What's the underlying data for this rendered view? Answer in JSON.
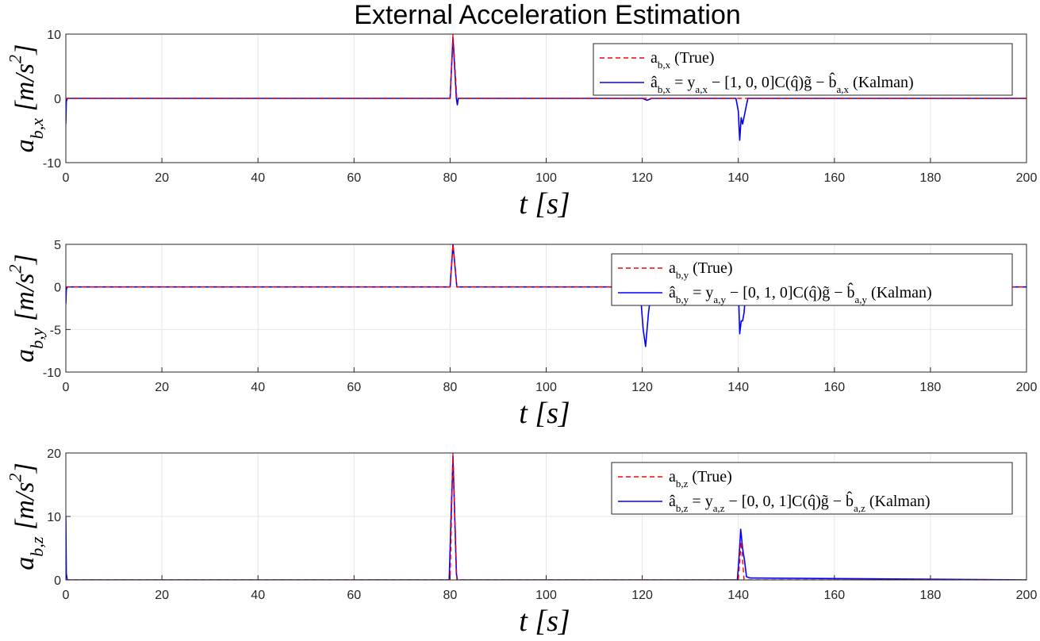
{
  "title": "External Acceleration Estimation",
  "colors": {
    "true_series": "#ff0000",
    "kalman_series": "#0000ff",
    "grid": "#e6e6e6",
    "axis": "#262626"
  },
  "chart_data": [
    {
      "type": "line",
      "ylabel": "a_{b,x} [m/s^2]",
      "xlabel": "t [s]",
      "xlim": [
        0,
        200
      ],
      "ylim": [
        -10,
        10
      ],
      "xticks": [
        "0",
        "20",
        "40",
        "60",
        "80",
        "100",
        "120",
        "140",
        "160",
        "180",
        "200"
      ],
      "yticks": [
        "10",
        "0",
        "-10"
      ],
      "grid": true,
      "legend_position": "top-right",
      "series": [
        {
          "name": "a_{b,x} (True)",
          "style": "dashed",
          "x": [
            0,
            80,
            80.6,
            81.4,
            82,
            200
          ],
          "y": [
            0,
            0,
            10,
            0,
            0,
            0
          ]
        },
        {
          "name": "â_{b,x} = y_{a,x} − [1, 0, 0]C(q̂)g̃ − b̂_{a,x} (Kalman)",
          "style": "solid",
          "x": [
            0,
            0.1,
            0.3,
            80,
            80.6,
            81.3,
            81.5,
            81.7,
            120,
            121,
            122,
            139.5,
            140,
            140.3,
            140.6,
            140.9,
            141.3,
            141.7,
            142,
            200
          ],
          "y": [
            -4,
            -0.5,
            0,
            0,
            9.5,
            0,
            -1,
            0,
            0,
            -0.3,
            0,
            0,
            -2,
            -6.5,
            -3,
            -4,
            -2.5,
            -1,
            0,
            0
          ]
        }
      ]
    },
    {
      "type": "line",
      "ylabel": "a_{b,y} [m/s^2]",
      "xlabel": "t [s]",
      "xlim": [
        0,
        200
      ],
      "ylim": [
        -10,
        5
      ],
      "xticks": [
        "0",
        "20",
        "40",
        "60",
        "80",
        "100",
        "120",
        "140",
        "160",
        "180",
        "200"
      ],
      "yticks": [
        "5",
        "0",
        "-5",
        "-10"
      ],
      "grid": true,
      "legend_position": "top-right",
      "series": [
        {
          "name": "a_{b,y} (True)",
          "style": "dashed",
          "x": [
            0,
            80,
            80.6,
            81.4,
            82,
            200
          ],
          "y": [
            0,
            0,
            5,
            0,
            0,
            0
          ]
        },
        {
          "name": "â_{b,y} = y_{a,y} − [0, 1, 0]C(q̂)g̃ − b̂_{a,y} (Kalman)",
          "style": "solid",
          "x": [
            0,
            0.1,
            0.3,
            80,
            80.6,
            81.4,
            82,
            119.5,
            120.2,
            120.7,
            121.3,
            122,
            140,
            140.3,
            140.6,
            140.9,
            141.2,
            141.6,
            200
          ],
          "y": [
            -2,
            -0.3,
            0,
            0,
            5,
            0,
            0,
            0,
            -5,
            -7,
            -3,
            0,
            0,
            -5.5,
            -4,
            -4,
            -3,
            0,
            0
          ]
        }
      ]
    },
    {
      "type": "line",
      "ylabel": "a_{b,z} [m/s^2]",
      "xlabel": "t [s]",
      "xlim": [
        0,
        200
      ],
      "ylim": [
        0,
        20
      ],
      "xticks": [
        "0",
        "20",
        "40",
        "60",
        "80",
        "100",
        "120",
        "140",
        "160",
        "180",
        "200"
      ],
      "yticks": [
        "20",
        "10",
        "0"
      ],
      "grid": true,
      "legend_position": "top-right",
      "series": [
        {
          "name": "a_{b,z} (True)",
          "style": "dashed",
          "x": [
            0,
            80,
            80.6,
            81.4,
            82,
            140,
            140.6,
            141.2,
            200
          ],
          "y": [
            0,
            0,
            20,
            0,
            0,
            0,
            6,
            0,
            0
          ]
        },
        {
          "name": "â_{b,z} = y_{a,z} − [0, 0, 1]C(q̂)g̃ − b̂_{a,z} (Kalman)",
          "style": "solid",
          "x": [
            0,
            0.1,
            0.3,
            79.8,
            80.6,
            81.3,
            81.6,
            82,
            139.8,
            140.2,
            140.5,
            140.9,
            141.3,
            141.7,
            142.5,
            200
          ],
          "y": [
            10,
            1,
            0,
            0,
            19.5,
            1,
            -0.3,
            0,
            0,
            4,
            8,
            5,
            3,
            0.5,
            0.3,
            0
          ]
        }
      ]
    }
  ]
}
